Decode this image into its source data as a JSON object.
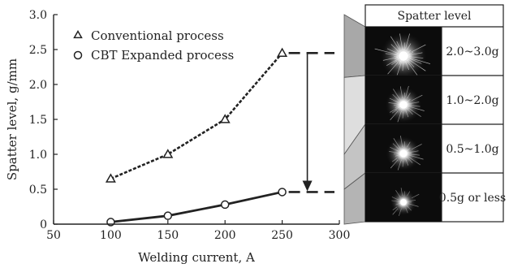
{
  "chart_data": {
    "type": "line",
    "xlabel": "Welding current, A",
    "ylabel": "Spatter level, g/mm",
    "xlim": [
      50,
      300
    ],
    "ylim": [
      0,
      3.0
    ],
    "xticks": [
      "50",
      "100",
      "150",
      "200",
      "250",
      "300"
    ],
    "yticks": [
      "0",
      "0.5",
      "1.0",
      "1.5",
      "2.0",
      "2.5",
      "3.0"
    ],
    "grid": false,
    "legend_position": "top-left",
    "series": [
      {
        "name": "Conventional process",
        "marker": "triangle",
        "line_style": "dashed",
        "x": [
          100,
          150,
          200,
          250
        ],
        "y": [
          0.65,
          1.0,
          1.5,
          2.45
        ]
      },
      {
        "name": "CBT Expanded process",
        "marker": "circle",
        "line_style": "solid",
        "x": [
          100,
          150,
          200,
          250
        ],
        "y": [
          0.03,
          0.12,
          0.28,
          0.46
        ]
      }
    ],
    "annotation": {
      "type": "reduction-arrow",
      "at_x": 272,
      "from_y": 2.45,
      "to_y": 0.46
    }
  },
  "spatter_panel": {
    "title": "Spatter level",
    "levels": [
      {
        "label": "2.0~3.0g",
        "intensity": 0.9
      },
      {
        "label": "1.0~2.0g",
        "intensity": 0.6
      },
      {
        "label": "0.5~1.0g",
        "intensity": 0.55
      },
      {
        "label": "0.5g or less",
        "intensity": 0.3
      }
    ]
  }
}
